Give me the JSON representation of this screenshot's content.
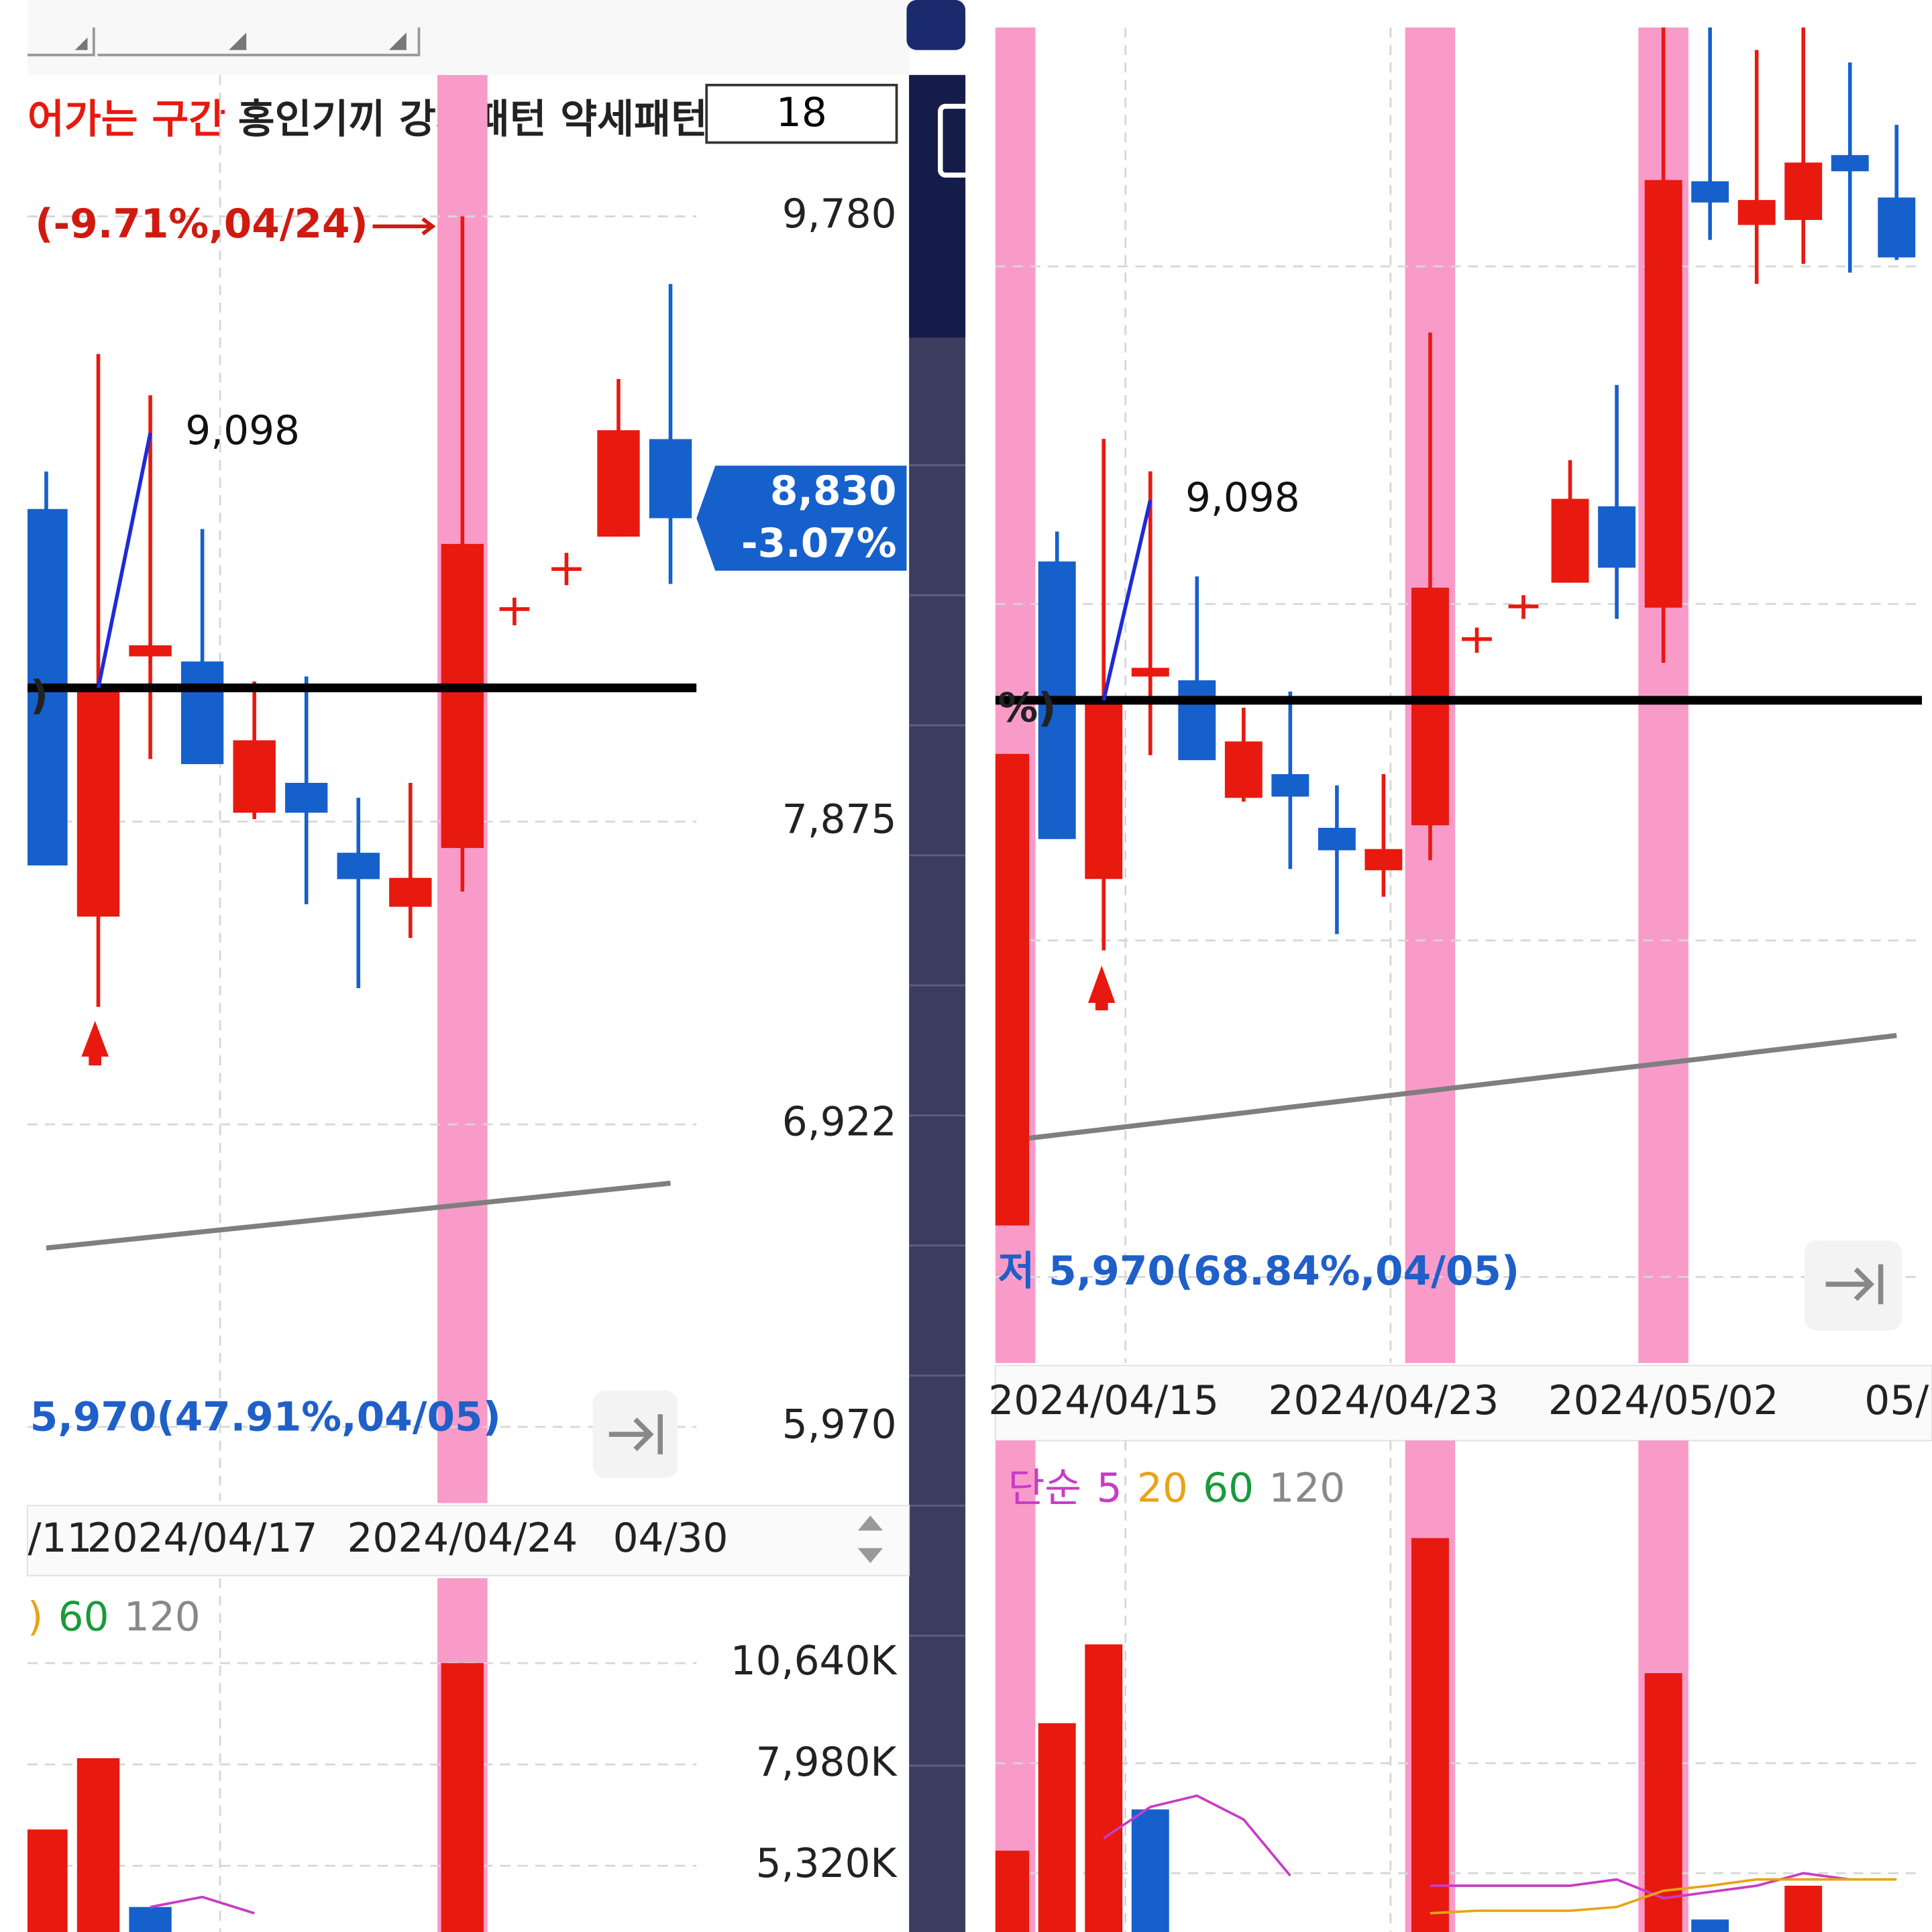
{
  "header": {
    "highlight": "어가는 구간",
    "rest": "홍인기끼 강세패턴 약세패턴",
    "period": "18"
  },
  "chart_data": [
    {
      "type": "candlestick",
      "categories": [
        null,
        null,
        null,
        "2024/04/17",
        null,
        null,
        null,
        null,
        "2024/04/24",
        null,
        null,
        null,
        "04/30"
      ],
      "clipped_date_label": "/11",
      "open": [
        8859,
        7576,
        8395,
        8379,
        7903,
        7997,
        7777,
        7607,
        7792,
        8544,
        8670,
        8772,
        9079
      ],
      "high": [
        8977,
        9347,
        9217,
        8796,
        8316,
        8332,
        7950,
        7997,
        9780,
        8580,
        8721,
        9268,
        9567
      ],
      "low": [
        7737,
        7292,
        8072,
        8056,
        7883,
        7615,
        7351,
        7509,
        7655,
        8493,
        8619,
        8772,
        8623
      ],
      "close": [
        7737,
        8296,
        8430,
        8056,
        8131,
        7903,
        7694,
        7698,
        8749,
        8544,
        8670,
        9107,
        8830
      ],
      "up_color": "#e8190f",
      "down_color": "#1660cc",
      "ma": {
        "color": "#7f7f7f",
        "values": [
          6533,
          6550,
          6567,
          6584,
          6601,
          6618,
          6635,
          6652,
          6669,
          6686,
          6703,
          6720,
          6737
        ]
      },
      "ylim": [
        5738,
        10217
      ],
      "yticks": [
        {
          "value": 9780,
          "label": "9,780"
        },
        {
          "value": 7875,
          "label": "7,875"
        },
        {
          "value": 6922,
          "label": "6,922"
        },
        {
          "value": 5970,
          "label": "5,970"
        }
      ],
      "grid": true,
      "highlight": [
        8
      ],
      "highlight_color": "#f99bc9",
      "reference_line": 8296,
      "ref_note": ")",
      "peak": {
        "value": 9098,
        "label": "9,098"
      },
      "high_note": "(-9.71%,04/24)",
      "low_note": {
        "value": 5970,
        "label": "5,970(47.91%,04/05)"
      },
      "last": {
        "value": 8830,
        "label": "8,830",
        "change": "-3.07%"
      }
    },
    {
      "type": "candlestick",
      "categories": [
        null,
        null,
        "2024/04/15",
        null,
        null,
        null,
        null,
        null,
        "2024/04/23",
        null,
        null,
        null,
        null,
        null,
        "2024/05/02",
        null,
        null,
        null,
        null,
        "05/"
      ],
      "open": [
        6192,
        8852,
        7580,
        8391,
        8376,
        7905,
        8000,
        7785,
        7615,
        7795,
        8541,
        8672,
        8767,
        9073,
        8667,
        10375,
        10200,
        10220,
        10480,
        10310
      ],
      "high": [
        8081,
        8972,
        9343,
        9213,
        8792,
        8266,
        8331,
        7955,
        8000,
        9769,
        8587,
        8717,
        9258,
        9559,
        10991,
        10991,
        10901,
        10991,
        10851,
        10601
      ],
      "low": [
        6192,
        7740,
        7294,
        8076,
        8056,
        7890,
        7620,
        7359,
        7509,
        7655,
        8486,
        8622,
        8767,
        8622,
        8446,
        10140,
        9964,
        10044,
        10009,
        10060
      ],
      "close": [
        8081,
        7740,
        8281,
        8426,
        8056,
        8131,
        7910,
        7695,
        7700,
        8747,
        8541,
        8672,
        9103,
        8827,
        10380,
        10290,
        10300,
        10450,
        10415,
        10070
      ],
      "up_color": "#e8190f",
      "down_color": "#1660cc",
      "ma": {
        "color": "#7f7f7f",
        "values": [
          6533,
          6555,
          6577,
          6599,
          6621,
          6643,
          6666,
          6688,
          6710,
          6732,
          6754,
          6776,
          6798,
          6820,
          6842,
          6864,
          6887,
          6909,
          6931,
          6953
        ]
      },
      "ylim": [
        5641,
        10991
      ],
      "ygrid": [
        10034,
        8682,
        7334,
        5986
      ],
      "grid": true,
      "highlight": [
        0,
        9,
        14
      ],
      "highlight_color": "#f99bc9",
      "reference_line": 8296,
      "ref_note": "%)",
      "peak": {
        "value": 9098,
        "label": "9,098"
      },
      "low_note": {
        "value": 5970,
        "label": "저 5,970(68.84%,04/05)"
      }
    },
    {
      "type": "bar",
      "values": [
        6272,
        8144,
        4237,
        null,
        null,
        null,
        null,
        null,
        10640,
        null,
        null,
        null,
        null
      ],
      "colors": [
        "#e8190f",
        "#e8190f",
        "#1660cc",
        null,
        null,
        null,
        null,
        null,
        "#e8190f",
        null,
        null,
        null,
        null
      ],
      "ma5": {
        "color": "#c83cc8",
        "values": [
          null,
          null,
          4236,
          4499,
          4072,
          null,
          null,
          null,
          null,
          null,
          null,
          null,
          null
        ]
      },
      "ylim": [
        3580,
        12873
      ],
      "yticks": [
        {
          "value": 10640,
          "label": "10,640K"
        },
        {
          "value": 7980,
          "label": "7,980K"
        },
        {
          "value": 5320,
          "label": "5,320K"
        }
      ],
      "grid": true,
      "legend": [
        {
          "label": ")",
          "color": "#e8a317"
        },
        {
          "label": "60",
          "color": "#1a9a3a"
        },
        {
          "label": "120",
          "color": "#888888"
        }
      ]
    },
    {
      "type": "bar",
      "values": [
        3244,
        6273,
        8144,
        4224,
        null,
        null,
        null,
        null,
        null,
        10669,
        null,
        null,
        null,
        null,
        7461,
        1610,
        null,
        2412,
        null,
        null
      ],
      "colors": [
        "#e8190f",
        "#e8190f",
        "#e8190f",
        "#1660cc",
        null,
        null,
        null,
        null,
        null,
        "#e8190f",
        null,
        null,
        null,
        null,
        "#e8190f",
        "#1660cc",
        null,
        "#e8190f",
        null,
        null
      ],
      "ma5": {
        "color": "#c83cc8",
        "values": [
          null,
          null,
          3540,
          4283,
          4550,
          3986,
          2650,
          null,
          null,
          2412,
          2412,
          2412,
          2412,
          2561,
          2115,
          2264,
          2412,
          2709,
          2561,
          null
        ]
      },
      "ma20": {
        "color": "#e8a317",
        "values": [
          null,
          null,
          null,
          null,
          null,
          null,
          null,
          null,
          null,
          1759,
          1818,
          1818,
          1818,
          1907,
          2293,
          2412,
          2561,
          2561,
          2561,
          2561
        ]
      },
      "ylim": [
        1313,
        12896
      ],
      "ygrid": [
        5322,
        2709
      ],
      "grid": true,
      "legend": [
        {
          "label": "단순",
          "color": "#c83cc8"
        },
        {
          "label": "5",
          "color": "#c83cc8"
        },
        {
          "label": "20",
          "color": "#e8a317"
        },
        {
          "label": "60",
          "color": "#1a9a3a"
        },
        {
          "label": "120",
          "color": "#888888"
        }
      ]
    }
  ]
}
